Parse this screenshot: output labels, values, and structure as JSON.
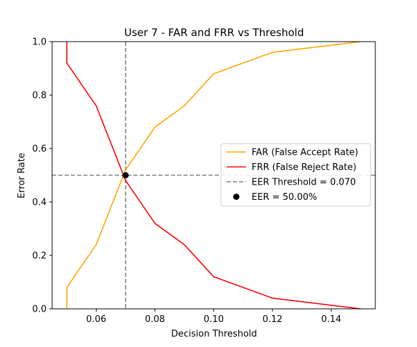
{
  "chart_data": {
    "type": "line",
    "title": "User 7 - FAR and FRR vs Threshold",
    "xlabel": "Decision Threshold",
    "ylabel": "Error Rate",
    "xlim": [
      0.045,
      0.155
    ],
    "ylim": [
      0.0,
      1.0
    ],
    "xticks": [
      0.06,
      0.08,
      0.1,
      0.12,
      0.14
    ],
    "xtick_labels": [
      "0.06",
      "0.08",
      "0.10",
      "0.12",
      "0.14"
    ],
    "yticks": [
      0.0,
      0.2,
      0.4,
      0.6,
      0.8,
      1.0
    ],
    "ytick_labels": [
      "0.0",
      "0.2",
      "0.4",
      "0.6",
      "0.8",
      "1.0"
    ],
    "grid": false,
    "legend_position": "center-right",
    "series": [
      {
        "name": "FAR (False Accept Rate)",
        "color": "#ffa500",
        "x": [
          0.05,
          0.05,
          0.06,
          0.07,
          0.08,
          0.09,
          0.1,
          0.12,
          0.15
        ],
        "y": [
          0.0,
          0.08,
          0.24,
          0.52,
          0.68,
          0.76,
          0.88,
          0.96,
          1.0
        ]
      },
      {
        "name": "FRR (False Reject Rate)",
        "color": "#ff0000",
        "x": [
          0.05,
          0.05,
          0.06,
          0.07,
          0.08,
          0.09,
          0.1,
          0.12,
          0.15
        ],
        "y": [
          1.0,
          0.92,
          0.76,
          0.48,
          0.32,
          0.24,
          0.12,
          0.04,
          0.0
        ]
      }
    ],
    "eer_threshold": {
      "label": "EER Threshold = 0.070",
      "x": 0.07,
      "y": 0.5,
      "color": "#808080"
    },
    "eer_point": {
      "label": "EER = 50.00%",
      "x": 0.07,
      "y": 0.5,
      "color": "#000000"
    }
  }
}
